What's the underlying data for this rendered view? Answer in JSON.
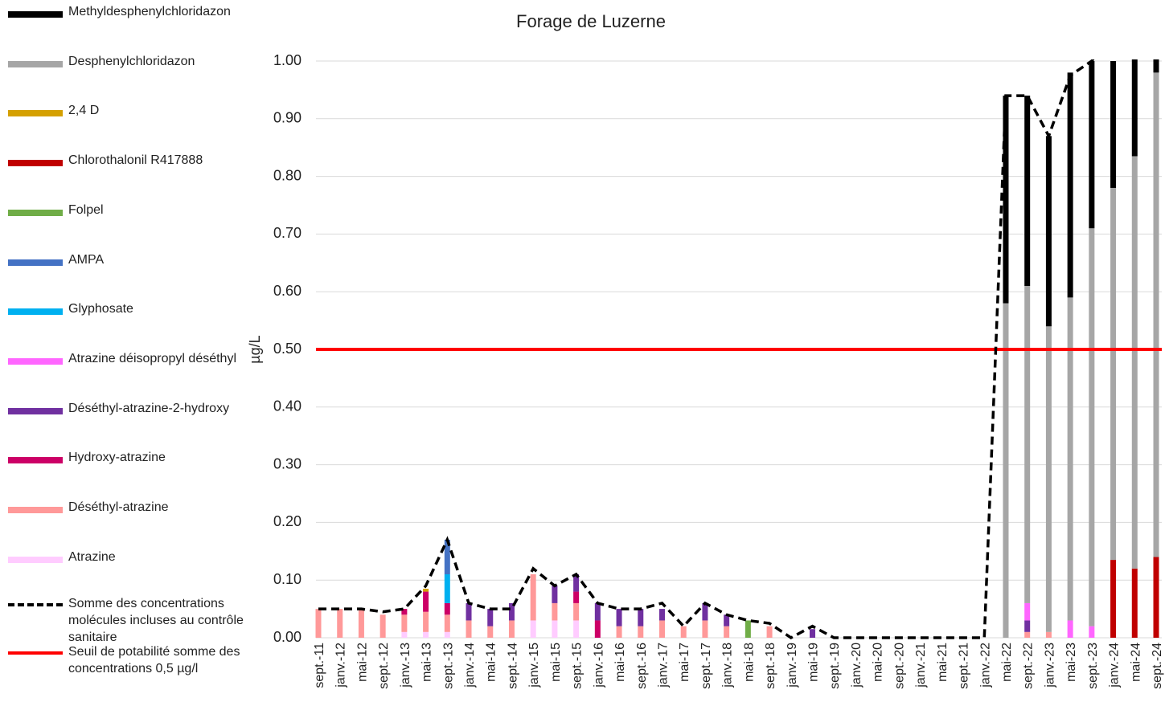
{
  "chart_data": {
    "type": "bar",
    "stacked": true,
    "title": "Forage de Luzerne",
    "y_label": "µg/L",
    "categories": [
      "sept.-11",
      "janv.-12",
      "mai-12",
      "sept.-12",
      "janv.-13",
      "mai-13",
      "sept.-13",
      "janv.-14",
      "mai-14",
      "sept.-14",
      "janv.-15",
      "mai-15",
      "sept.-15",
      "janv.-16",
      "mai-16",
      "sept.-16",
      "janv.-17",
      "mai-17",
      "sept.-17",
      "janv.-18",
      "mai-18",
      "sept.-18",
      "janv.-19",
      "mai-19",
      "sept.-19",
      "janv.-20",
      "mai-20",
      "sept.-20",
      "janv.-21",
      "mai-21",
      "sept.-21",
      "janv.-22",
      "mai-22",
      "sept.-22",
      "janv.-23",
      "mai-23",
      "sept.-23",
      "janv.-24",
      "mai-24",
      "sept.-24"
    ],
    "series": [
      {
        "name": "Atrazine",
        "color": "#ffccff",
        "values": [
          0,
          0,
          0,
          0,
          0.01,
          0.01,
          0.01,
          0,
          0,
          0,
          0.03,
          0.03,
          0.03,
          0,
          0,
          0,
          0,
          0,
          0,
          0,
          0,
          0,
          0,
          0,
          0,
          0,
          0,
          0,
          0,
          0,
          0,
          0,
          0,
          0,
          0,
          0,
          0,
          0,
          0,
          0
        ]
      },
      {
        "name": "Déséthyl-atrazine",
        "color": "#ff9999",
        "values": [
          0.05,
          0.05,
          0.05,
          0.04,
          0.03,
          0.035,
          0.03,
          0.03,
          0.02,
          0.03,
          0.08,
          0.03,
          0.03,
          0,
          0.02,
          0.02,
          0.03,
          0.02,
          0.03,
          0.02,
          0,
          0.02,
          0,
          0,
          0,
          0,
          0,
          0,
          0,
          0,
          0,
          0,
          0,
          0.01,
          0.01,
          0,
          0,
          0,
          0,
          0
        ]
      },
      {
        "name": "Hydroxy-atrazine",
        "color": "#cc0066",
        "values": [
          0,
          0,
          0,
          0,
          0.01,
          0.035,
          0.02,
          0,
          0,
          0,
          0,
          0,
          0.02,
          0.03,
          0,
          0,
          0,
          0,
          0,
          0,
          0,
          0,
          0,
          0,
          0,
          0,
          0,
          0,
          0,
          0,
          0,
          0,
          0,
          0,
          0,
          0,
          0,
          0,
          0,
          0
        ]
      },
      {
        "name": "Déséthyl-atrazine-2-hydroxy",
        "color": "#7030a0",
        "values": [
          0,
          0,
          0,
          0,
          0,
          0,
          0,
          0.03,
          0.03,
          0.03,
          0,
          0.03,
          0.03,
          0.03,
          0.03,
          0.03,
          0.02,
          0,
          0.03,
          0.02,
          0,
          0,
          0,
          0.015,
          0,
          0,
          0,
          0,
          0,
          0,
          0,
          0,
          0,
          0.02,
          0,
          0,
          0,
          0,
          0,
          0
        ]
      },
      {
        "name": "Atrazine déisopropyl déséthyl",
        "color": "#ff66ff",
        "values": [
          0,
          0,
          0,
          0,
          0,
          0,
          0,
          0,
          0,
          0,
          0,
          0,
          0,
          0,
          0,
          0,
          0,
          0,
          0,
          0,
          0,
          0,
          0,
          0,
          0,
          0,
          0,
          0,
          0,
          0,
          0,
          0,
          0,
          0.03,
          0,
          0.03,
          0.02,
          0,
          0,
          0
        ]
      },
      {
        "name": "Glyphosate",
        "color": "#00b0f0",
        "values": [
          0,
          0,
          0,
          0,
          0,
          0,
          0.05,
          0,
          0,
          0,
          0,
          0,
          0,
          0,
          0,
          0,
          0,
          0,
          0,
          0,
          0,
          0,
          0,
          0,
          0,
          0,
          0,
          0,
          0,
          0,
          0,
          0,
          0,
          0,
          0,
          0,
          0,
          0,
          0,
          0
        ]
      },
      {
        "name": "AMPA",
        "color": "#4472c4",
        "values": [
          0,
          0,
          0,
          0,
          0,
          0,
          0.06,
          0,
          0,
          0,
          0,
          0,
          0,
          0,
          0,
          0,
          0,
          0,
          0,
          0,
          0,
          0,
          0,
          0,
          0,
          0,
          0,
          0,
          0,
          0,
          0,
          0,
          0,
          0,
          0,
          0,
          0,
          0,
          0,
          0
        ]
      },
      {
        "name": "Folpel",
        "color": "#70ad47",
        "values": [
          0,
          0,
          0,
          0,
          0,
          0,
          0,
          0,
          0,
          0,
          0,
          0,
          0,
          0,
          0,
          0,
          0,
          0,
          0,
          0,
          0.03,
          0,
          0,
          0,
          0,
          0,
          0,
          0,
          0,
          0,
          0,
          0,
          0,
          0,
          0,
          0,
          0,
          0,
          0,
          0
        ]
      },
      {
        "name": "Chlorothalonil R417888",
        "color": "#c00000",
        "values": [
          0,
          0,
          0,
          0,
          0,
          0,
          0,
          0,
          0,
          0,
          0,
          0,
          0,
          0,
          0,
          0,
          0,
          0,
          0,
          0,
          0,
          0,
          0,
          0,
          0,
          0,
          0,
          0,
          0,
          0,
          0,
          0,
          0,
          0,
          0,
          0,
          0,
          0.135,
          0.12,
          0.14
        ]
      },
      {
        "name": "2,4 D",
        "color": "#d4a000",
        "values": [
          0,
          0,
          0,
          0,
          0,
          0.005,
          0,
          0,
          0,
          0,
          0,
          0,
          0,
          0,
          0,
          0,
          0,
          0,
          0,
          0,
          0,
          0,
          0,
          0,
          0,
          0,
          0,
          0,
          0,
          0,
          0,
          0,
          0,
          0,
          0,
          0,
          0,
          0,
          0,
          0
        ]
      },
      {
        "name": "Desphenylchloridazon",
        "color": "#a6a6a6",
        "values": [
          0,
          0,
          0,
          0,
          0,
          0,
          0,
          0,
          0,
          0,
          0,
          0,
          0,
          0,
          0,
          0,
          0,
          0,
          0,
          0,
          0,
          0,
          0,
          0,
          0,
          0,
          0,
          0,
          0,
          0,
          0,
          0,
          0.58,
          0.55,
          0.53,
          0.56,
          0.69,
          0.645,
          0.715,
          0.84
        ]
      },
      {
        "name": "Methyldesphenylchloridazon",
        "color": "#000000",
        "values": [
          0,
          0,
          0,
          0,
          0,
          0,
          0,
          0,
          0,
          0,
          0,
          0,
          0,
          0,
          0,
          0,
          0,
          0,
          0,
          0,
          0,
          0,
          0,
          0,
          0,
          0,
          0,
          0,
          0,
          0,
          0,
          0,
          0.36,
          0.33,
          0.33,
          0.39,
          0.29,
          0.22,
          0.2,
          0.05
        ]
      }
    ],
    "sum_line": {
      "name": "Somme des concentrations molécules incluses au contrôle sanitaire",
      "color": "#000000",
      "values": [
        0.05,
        0.05,
        0.05,
        0.045,
        0.05,
        0.09,
        0.17,
        0.06,
        0.05,
        0.05,
        0.12,
        0.09,
        0.11,
        0.06,
        0.05,
        0.05,
        0.06,
        0.02,
        0.06,
        0.04,
        0.03,
        0.025,
        0,
        0.02,
        0,
        0,
        0,
        0,
        0,
        0,
        0,
        0,
        0.94,
        0.94,
        0.87,
        0.975,
        1.0,
        1.05,
        1.05,
        1.03
      ]
    },
    "threshold": {
      "name": "Seuil de potabilité somme des concentrations 0,5 µg/l",
      "color": "#ff0000",
      "value": 0.5
    },
    "ylim": [
      0,
      1
    ],
    "yticks": [
      {
        "value": 0,
        "label": "0.00"
      },
      {
        "value": 0.1,
        "label": "0.10"
      },
      {
        "value": 0.2,
        "label": "0.20"
      },
      {
        "value": 0.3,
        "label": "0.30"
      },
      {
        "value": 0.4,
        "label": "0.40"
      },
      {
        "value": 0.5,
        "label": "0.50"
      },
      {
        "value": 0.6,
        "label": "0.60"
      },
      {
        "value": 0.7,
        "label": "0.70"
      },
      {
        "value": 0.8,
        "label": "0.80"
      },
      {
        "value": 0.9,
        "label": "0.90"
      },
      {
        "value": 1,
        "label": "1.00"
      }
    ],
    "grid": true
  }
}
